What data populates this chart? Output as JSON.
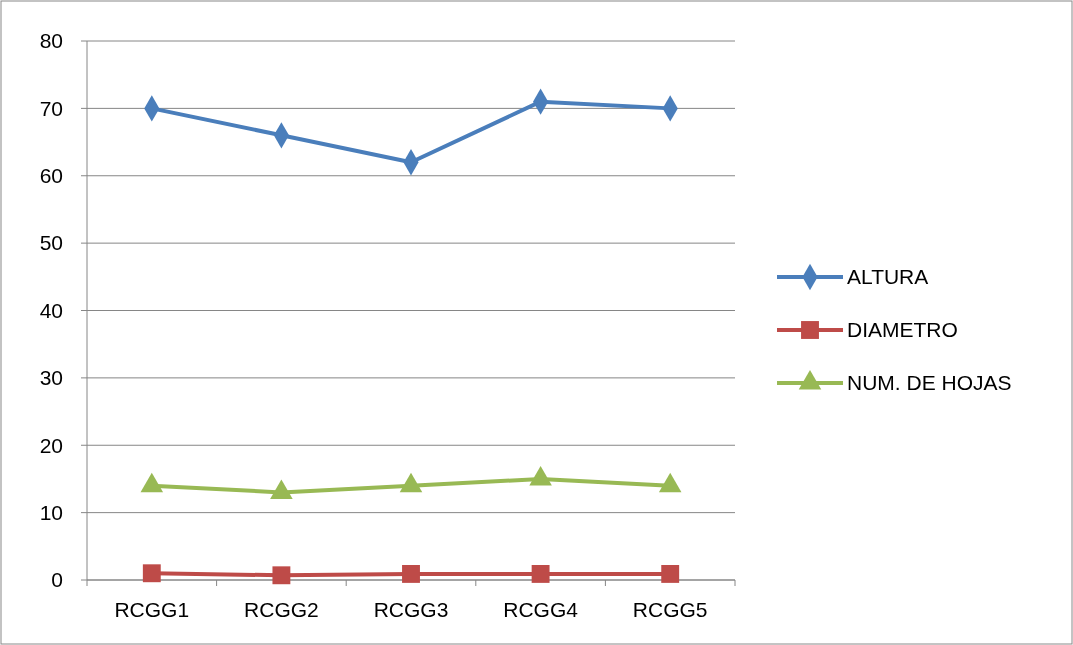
{
  "chart_data": {
    "type": "line",
    "categories": [
      "RCGG1",
      "RCGG2",
      "RCGG3",
      "RCGG4",
      "RCGG5"
    ],
    "series": [
      {
        "name": "ALTURA",
        "color": "#4a7ebb",
        "marker": "diamond",
        "values": [
          70,
          66,
          62,
          71,
          70
        ]
      },
      {
        "name": "DIAMETRO",
        "color": "#be4b48",
        "marker": "square",
        "values": [
          1,
          0.7,
          0.9,
          0.9,
          0.9
        ]
      },
      {
        "name": "NUM. DE HOJAS",
        "color": "#98b954",
        "marker": "triangle",
        "values": [
          14,
          13,
          14,
          15,
          14
        ]
      }
    ],
    "ylim": [
      0,
      80
    ],
    "yticks": [
      0,
      10,
      20,
      30,
      40,
      50,
      60,
      70,
      80
    ],
    "grid": "y",
    "legend": "right"
  }
}
